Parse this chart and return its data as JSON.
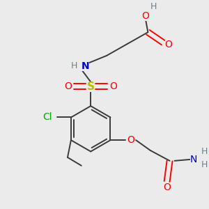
{
  "background_color": "#ebebeb",
  "bond_color": "#3a3a3a",
  "atom_colors": {
    "O": "#ff0000",
    "N": "#0000cc",
    "S": "#bbbb00",
    "Cl": "#00aa00",
    "H": "#6a7f8a",
    "C": "#3a3a3a"
  },
  "figsize": [
    3.0,
    3.0
  ],
  "dpi": 100
}
